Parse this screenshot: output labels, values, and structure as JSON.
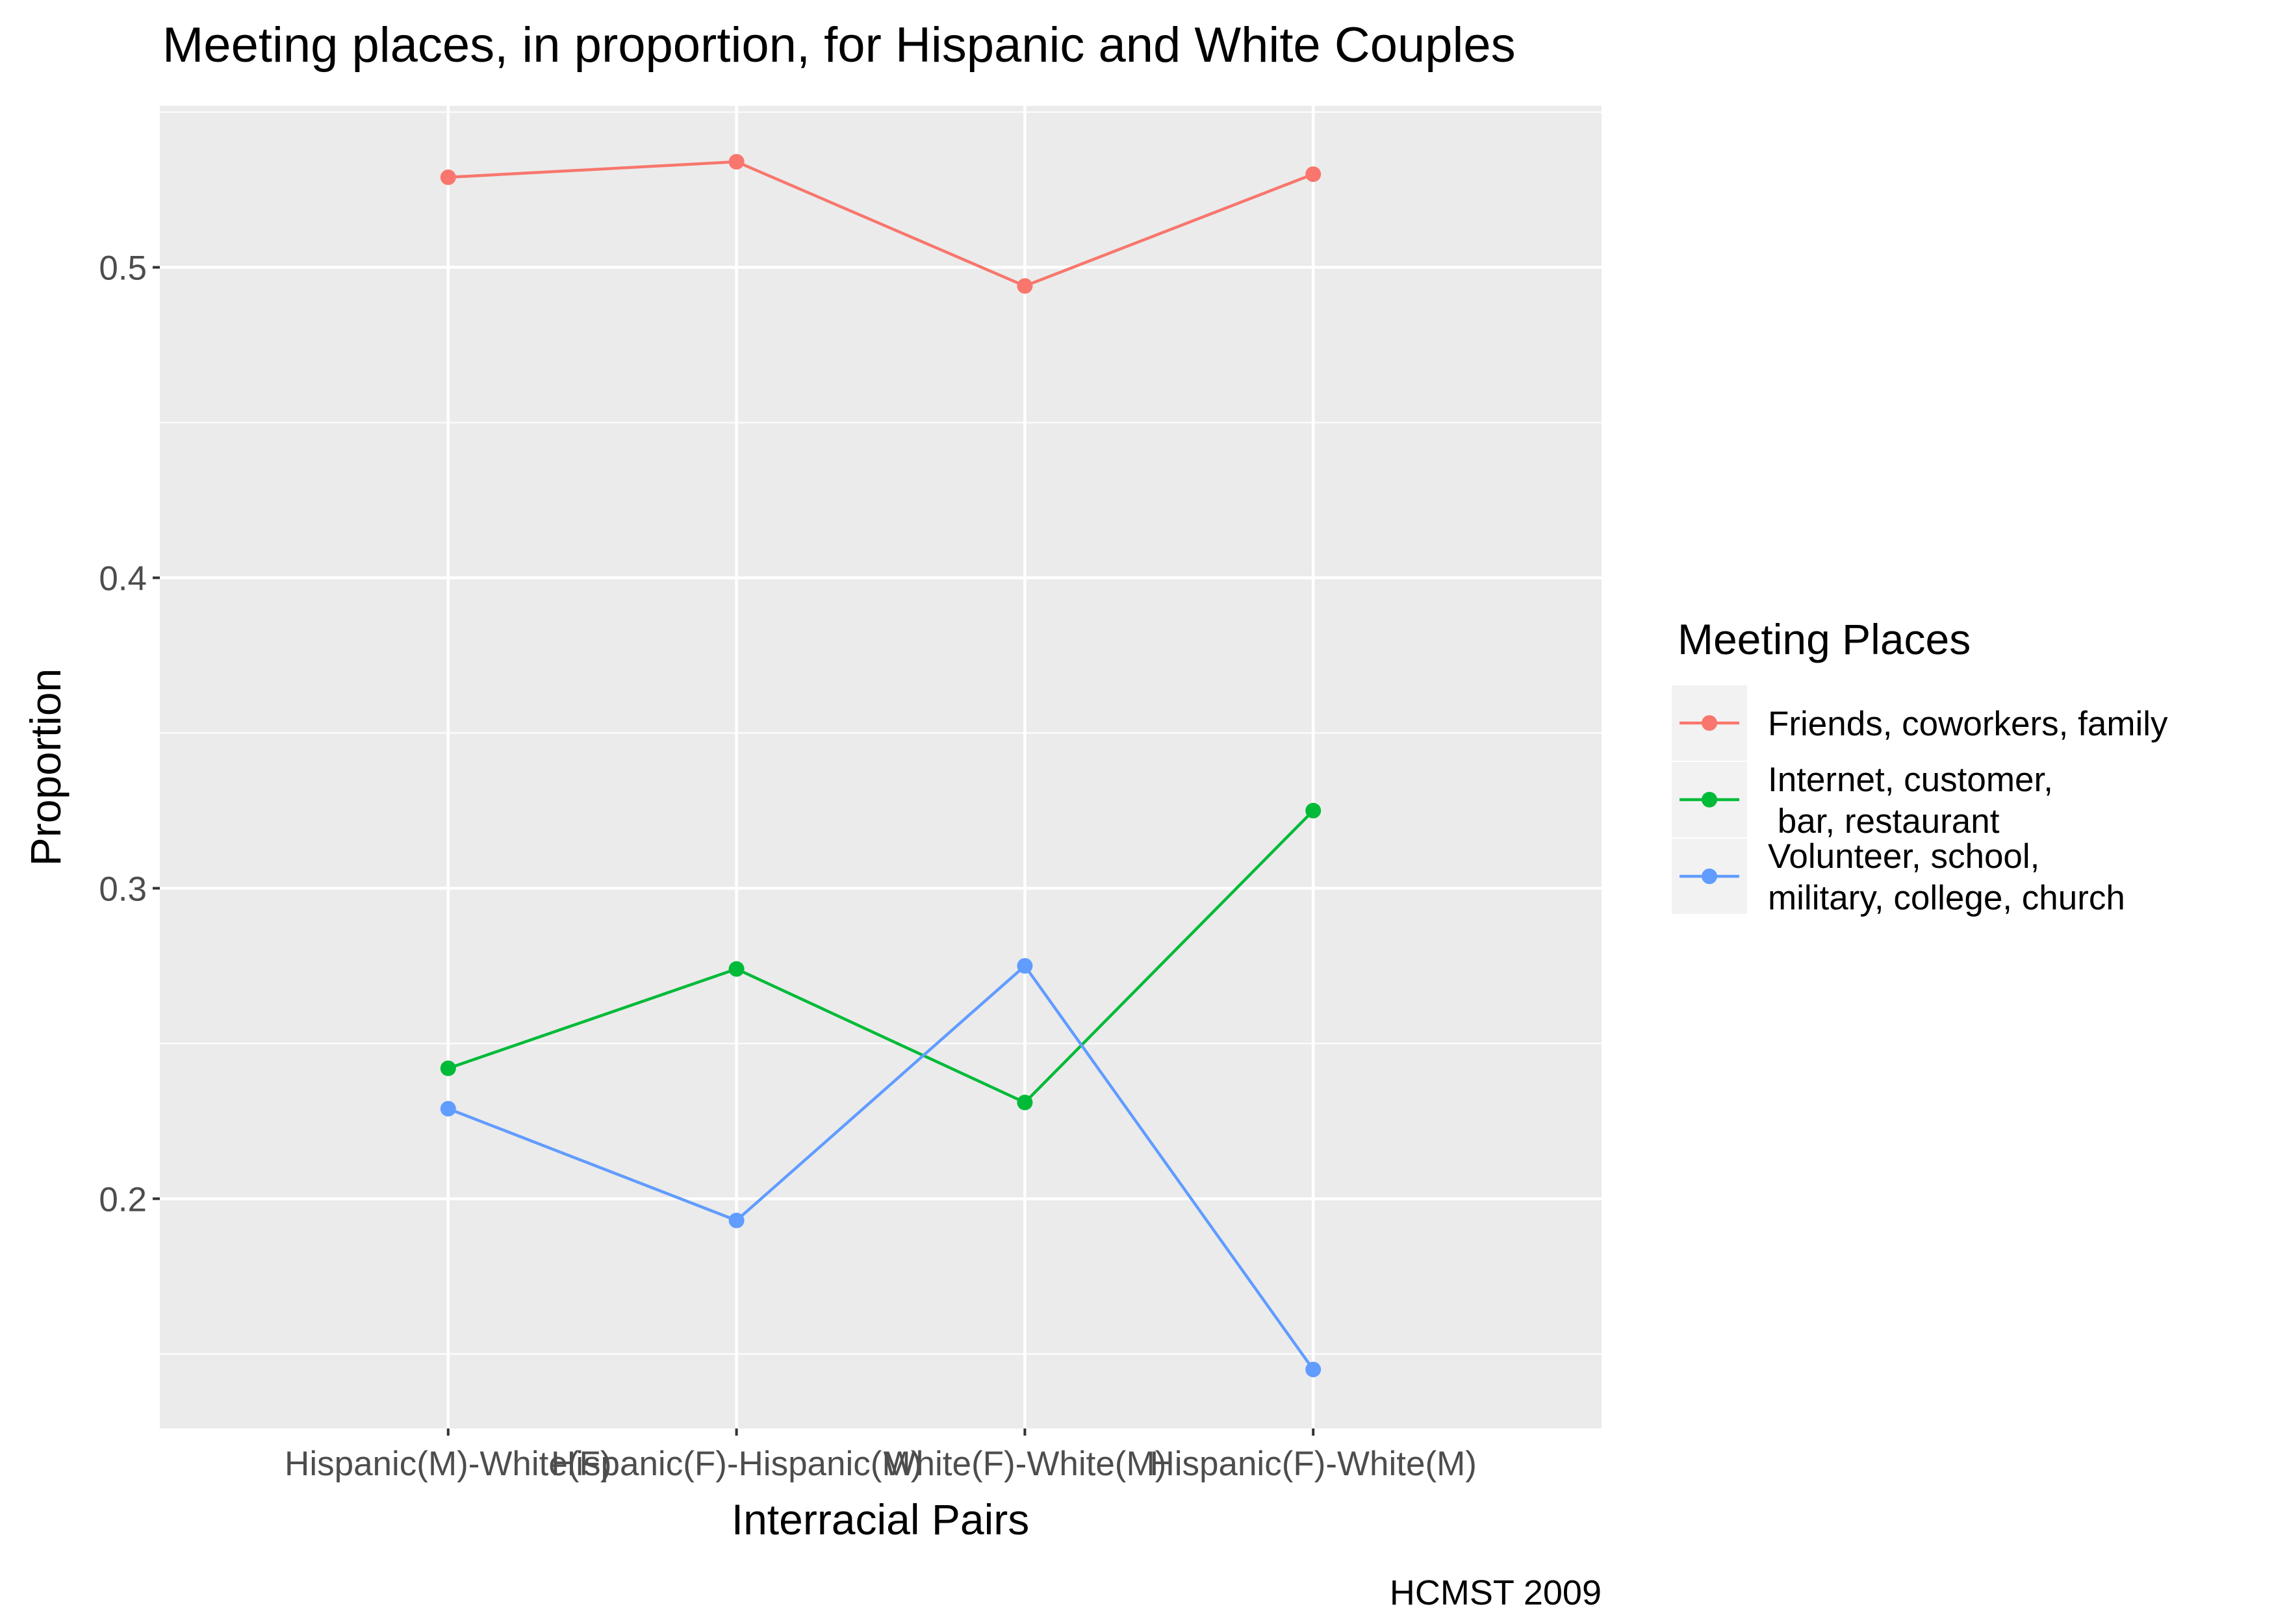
{
  "chart_data": {
    "type": "line",
    "title": "Meeting places, in proportion, for Hispanic and White Couples",
    "xlabel": "Interracial Pairs",
    "ylabel": "Proportion",
    "caption": "HCMST 2009",
    "categories": [
      "Hispanic(M)-White(F)",
      "Hispanic(F)-Hispanic(M)",
      "White(F)-White(M)",
      "Hispanic(F)-White(M)"
    ],
    "ylim": [
      0.126,
      0.552
    ],
    "yticks": [
      0.2,
      0.3,
      0.4,
      0.5
    ],
    "ytick_labels": [
      "0.2",
      "0.3",
      "0.4",
      "0.5"
    ],
    "grid": true,
    "legend": {
      "title": "Meeting Places",
      "position": "right"
    },
    "series": [
      {
        "name": "Friends, coworkers, family",
        "name_lines": [
          "Friends, coworkers, family"
        ],
        "color": "#F8766D",
        "values": [
          0.529,
          0.534,
          0.494,
          0.53
        ]
      },
      {
        "name": "Internet, customer,\n bar, restaurant",
        "name_lines": [
          "Internet, customer,",
          " bar, restaurant"
        ],
        "color": "#00BA38",
        "values": [
          0.242,
          0.274,
          0.231,
          0.325
        ]
      },
      {
        "name": "Volunteer, school,\nmilitary, college, church",
        "name_lines": [
          "Volunteer, school,",
          "military, college, church"
        ],
        "color": "#619CFF",
        "values": [
          0.229,
          0.193,
          0.275,
          0.145
        ]
      }
    ]
  }
}
